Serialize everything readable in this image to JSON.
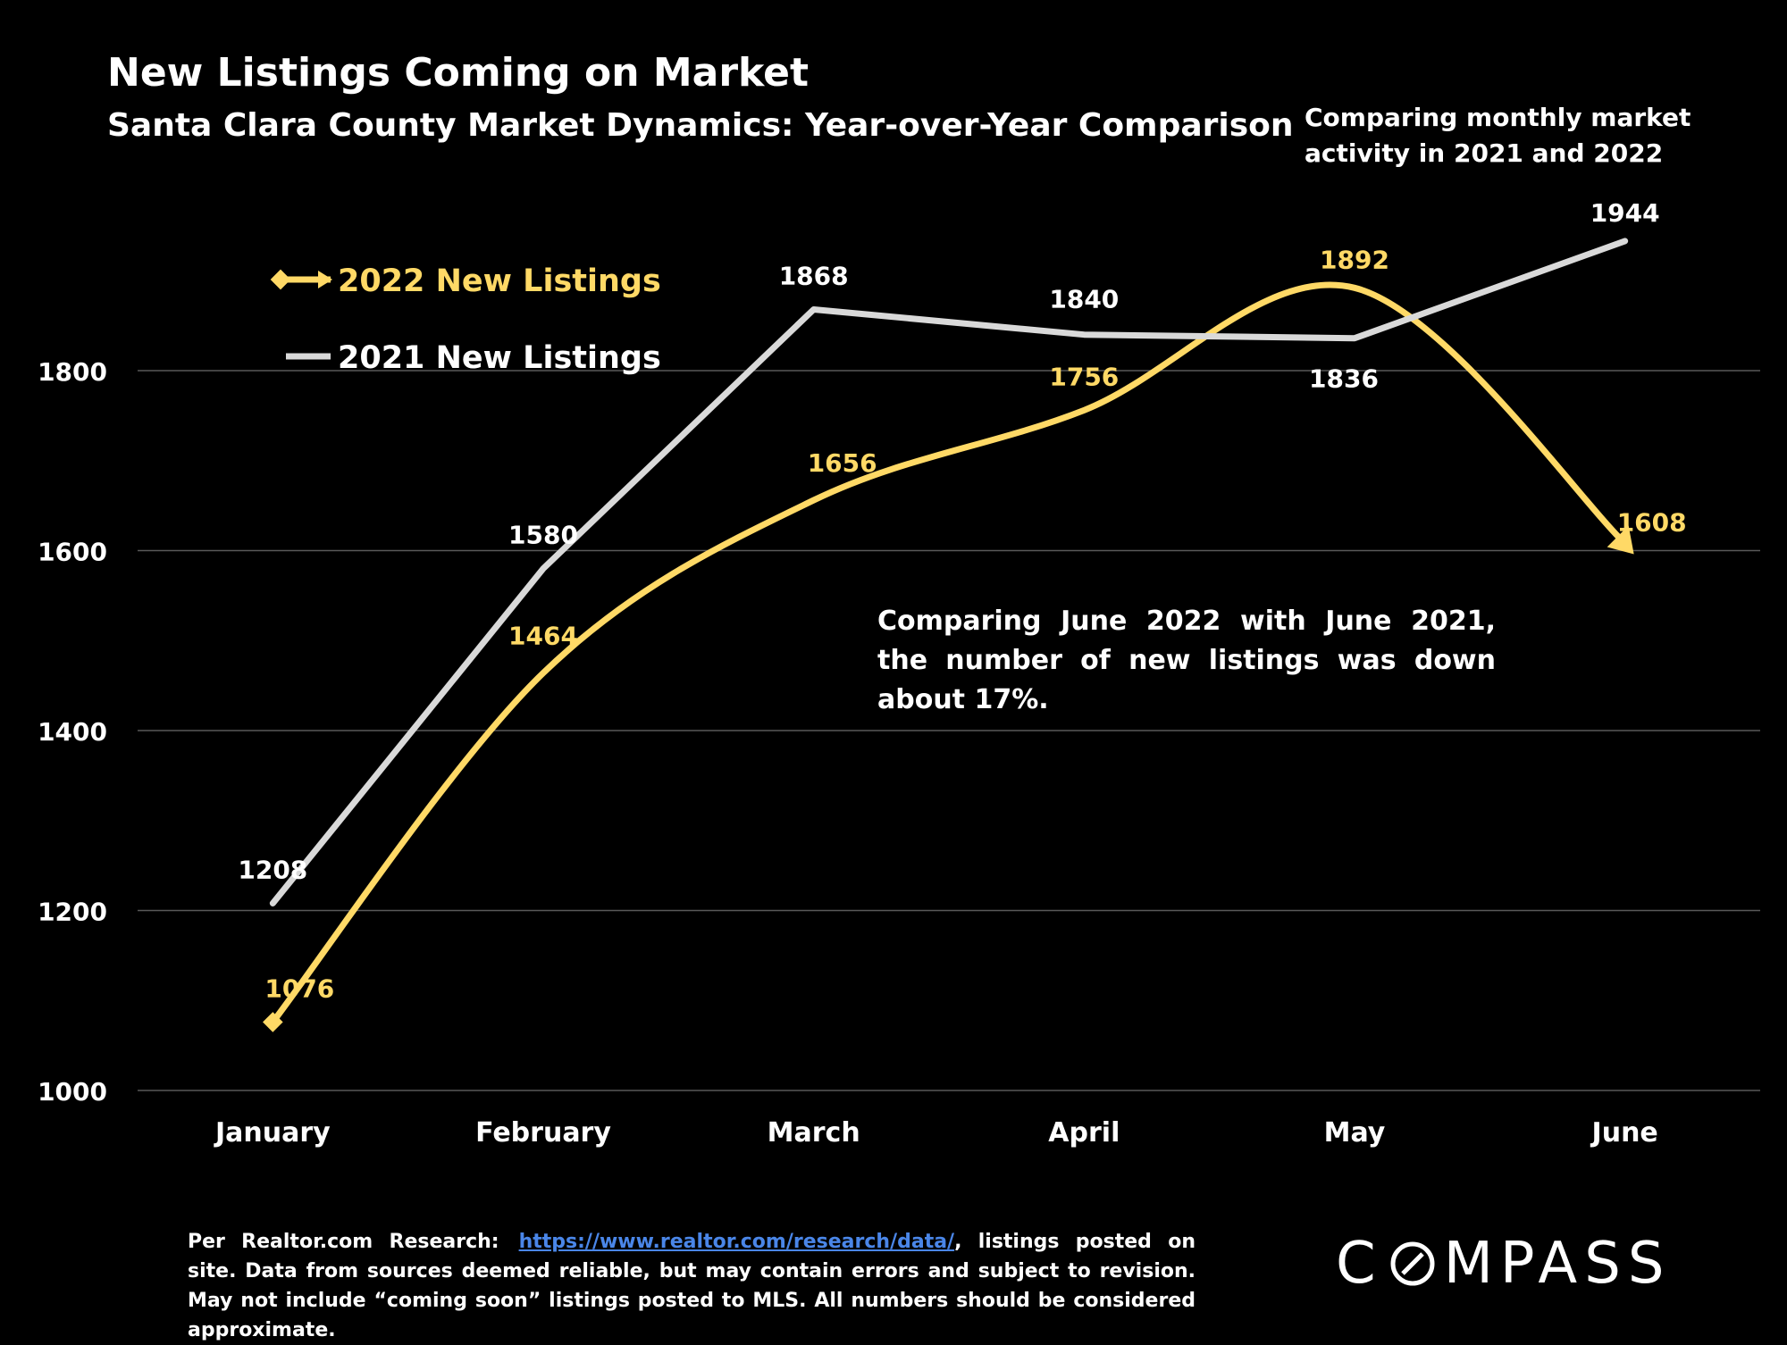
{
  "title": "New Listings Coming on Market",
  "subtitle": "Santa Clara County Market Dynamics: Year-over-Year Comparison",
  "side_note": "Comparing monthly market activity in 2021 and 2022",
  "annotation": "Comparing June 2022 with June 2021, the number of new listings was down about 17%.",
  "footer": {
    "prefix": "Per Realtor.com Research:",
    "link_text": "https://www.realtor.com/research/data/",
    "suffix": ", listings posted on site. Data from sources deemed reliable, but may contain errors and subject to revision. May not include “coming soon” listings posted to MLS. All numbers should be considered approximate."
  },
  "logo": {
    "prefix": "C",
    "suffix": "MPASS"
  },
  "chart_data": {
    "type": "line",
    "categories": [
      "January",
      "February",
      "March",
      "April",
      "May",
      "June"
    ],
    "series": [
      {
        "name": "2022 New Listings",
        "values": [
          1076,
          1464,
          1656,
          1756,
          1892,
          1608
        ],
        "color": "#ffd966",
        "smooth": true
      },
      {
        "name": "2021 New Listings",
        "values": [
          1208,
          1580,
          1868,
          1840,
          1836,
          1944
        ],
        "color": "#d9d9d9",
        "smooth": false
      }
    ],
    "ylim": [
      1000,
      1950
    ],
    "yticks": [
      1000,
      1200,
      1400,
      1600,
      1800
    ],
    "grid": true,
    "legend": "upper-left"
  }
}
